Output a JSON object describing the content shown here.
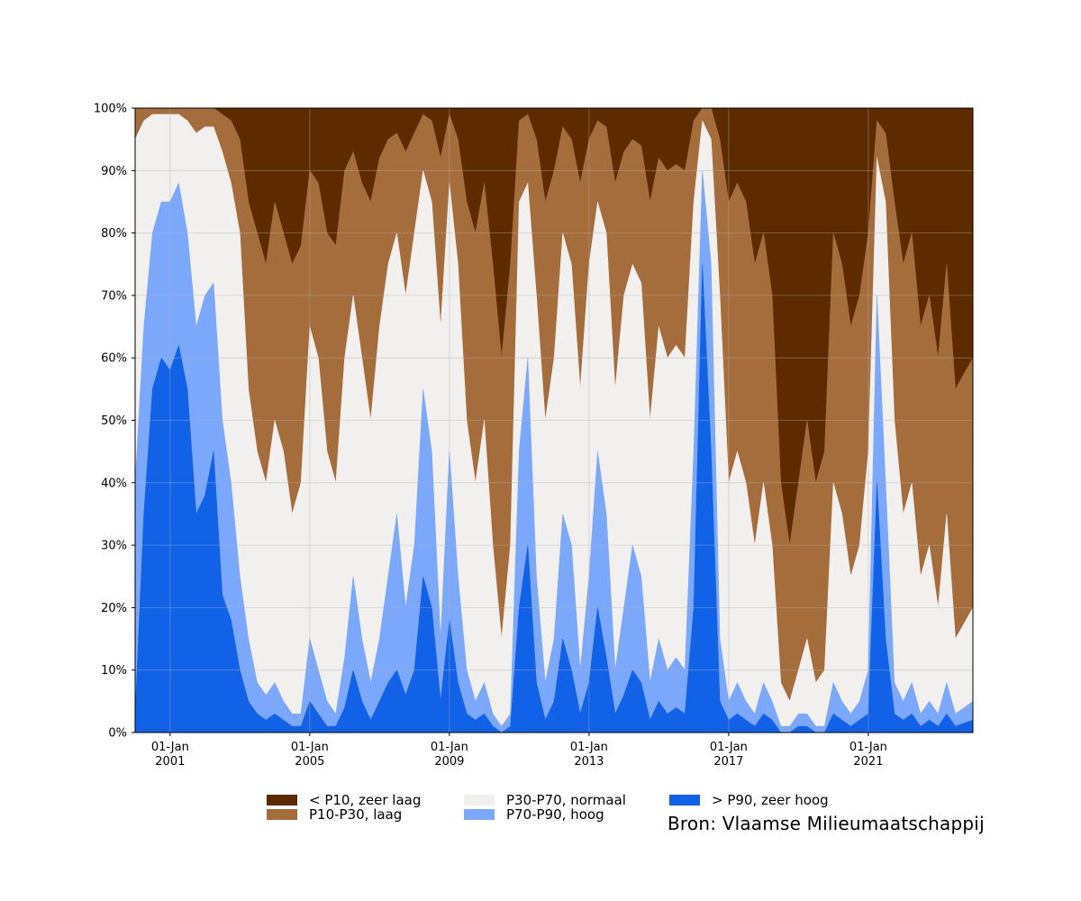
{
  "chart_data": {
    "type": "area",
    "stacked": true,
    "normalized": true,
    "title": "",
    "xlabel": "",
    "ylabel": "",
    "ylim": [
      0,
      100
    ],
    "xlim": [
      "2000-01-01",
      "2023-12-31"
    ],
    "grid": true,
    "legend_position": "bottom",
    "y_ticks": [
      "0%",
      "10%",
      "20%",
      "30%",
      "40%",
      "50%",
      "60%",
      "70%",
      "80%",
      "90%",
      "100%"
    ],
    "x_ticks": [
      {
        "date": "2001-01-01",
        "line1": "01-Jan",
        "line2": "2001"
      },
      {
        "date": "2005-01-01",
        "line1": "01-Jan",
        "line2": "2005"
      },
      {
        "date": "2009-01-01",
        "line1": "01-Jan",
        "line2": "2009"
      },
      {
        "date": "2013-01-01",
        "line1": "01-Jan",
        "line2": "2013"
      },
      {
        "date": "2017-01-01",
        "line1": "01-Jan",
        "line2": "2017"
      },
      {
        "date": "2021-01-01",
        "line1": "01-Jan",
        "line2": "2021"
      }
    ],
    "series_order_bottom_to_top": [
      "> P90, zeer hoog",
      "P70-P90, hoog",
      "P30-P70, normaal",
      "P10-P30, laag",
      "< P10, zeer laag"
    ],
    "series": [
      {
        "name": "< P10, zeer laag",
        "color": "#5e2a00"
      },
      {
        "name": "P10-P30, laag",
        "color": "#a56d3c"
      },
      {
        "name": "P30-P70, normaal",
        "color": "#f2f0ee"
      },
      {
        "name": "P70-P90, hoog",
        "color": "#7ba8fa"
      },
      {
        "name": "> P90, zeer hoog",
        "color": "#1262e8"
      }
    ],
    "x": [
      "2000-01",
      "2000-04",
      "2000-07",
      "2000-10",
      "2001-01",
      "2001-04",
      "2001-07",
      "2001-10",
      "2002-01",
      "2002-04",
      "2002-07",
      "2002-10",
      "2003-01",
      "2003-04",
      "2003-07",
      "2003-10",
      "2004-01",
      "2004-04",
      "2004-07",
      "2004-10",
      "2005-01",
      "2005-04",
      "2005-07",
      "2005-10",
      "2006-01",
      "2006-04",
      "2006-07",
      "2006-10",
      "2007-01",
      "2007-04",
      "2007-07",
      "2007-10",
      "2008-01",
      "2008-04",
      "2008-07",
      "2008-10",
      "2009-01",
      "2009-04",
      "2009-07",
      "2009-10",
      "2010-01",
      "2010-04",
      "2010-07",
      "2010-10",
      "2011-01",
      "2011-04",
      "2011-07",
      "2011-10",
      "2012-01",
      "2012-04",
      "2012-07",
      "2012-10",
      "2013-01",
      "2013-04",
      "2013-07",
      "2013-10",
      "2014-01",
      "2014-04",
      "2014-07",
      "2014-10",
      "2015-01",
      "2015-04",
      "2015-07",
      "2015-10",
      "2016-01",
      "2016-04",
      "2016-07",
      "2016-10",
      "2017-01",
      "2017-04",
      "2017-07",
      "2017-10",
      "2018-01",
      "2018-04",
      "2018-07",
      "2018-10",
      "2019-01",
      "2019-04",
      "2019-07",
      "2019-10",
      "2020-01",
      "2020-04",
      "2020-07",
      "2020-10",
      "2021-01",
      "2021-04",
      "2021-07",
      "2021-10",
      "2022-01",
      "2022-04",
      "2022-07",
      "2022-10",
      "2023-01",
      "2023-04",
      "2023-07",
      "2023-10"
    ],
    "cumulative_boundaries_percent": {
      "above_P90": [
        3,
        35,
        55,
        60,
        58,
        62,
        55,
        35,
        38,
        45,
        22,
        18,
        10,
        5,
        3,
        2,
        3,
        2,
        1,
        1,
        5,
        3,
        1,
        1,
        4,
        10,
        5,
        2,
        5,
        8,
        10,
        6,
        10,
        25,
        20,
        5,
        18,
        8,
        3,
        2,
        3,
        1,
        0,
        1,
        20,
        30,
        8,
        2,
        5,
        15,
        10,
        3,
        8,
        20,
        12,
        3,
        6,
        10,
        8,
        2,
        5,
        3,
        4,
        3,
        20,
        75,
        45,
        5,
        2,
        3,
        2,
        1,
        3,
        2,
        0,
        0,
        1,
        1,
        0,
        0,
        3,
        2,
        1,
        2,
        3,
        40,
        15,
        3,
        2,
        3,
        1,
        2,
        1,
        3,
        1,
        2
      ],
      "above_P70": [
        40,
        65,
        80,
        85,
        85,
        88,
        80,
        65,
        70,
        72,
        50,
        40,
        25,
        15,
        8,
        6,
        8,
        5,
        3,
        3,
        15,
        10,
        5,
        3,
        12,
        25,
        15,
        8,
        15,
        25,
        35,
        20,
        30,
        55,
        45,
        15,
        45,
        25,
        10,
        5,
        8,
        3,
        1,
        3,
        45,
        60,
        25,
        8,
        15,
        35,
        30,
        10,
        25,
        45,
        35,
        10,
        20,
        30,
        25,
        8,
        15,
        10,
        12,
        10,
        45,
        90,
        75,
        15,
        5,
        8,
        5,
        3,
        8,
        5,
        1,
        1,
        3,
        3,
        1,
        1,
        8,
        5,
        3,
        5,
        10,
        70,
        40,
        8,
        5,
        8,
        3,
        5,
        3,
        8,
        3,
        5
      ],
      "above_P30": [
        95,
        98,
        99,
        99,
        99,
        99,
        98,
        96,
        97,
        97,
        93,
        88,
        80,
        55,
        45,
        40,
        50,
        45,
        35,
        40,
        65,
        60,
        45,
        40,
        60,
        70,
        60,
        50,
        65,
        75,
        80,
        70,
        80,
        90,
        85,
        65,
        88,
        75,
        50,
        40,
        50,
        30,
        15,
        30,
        85,
        88,
        70,
        50,
        60,
        80,
        75,
        55,
        75,
        85,
        80,
        55,
        70,
        75,
        72,
        50,
        65,
        60,
        62,
        60,
        85,
        98,
        95,
        70,
        40,
        45,
        40,
        30,
        40,
        30,
        8,
        5,
        10,
        15,
        8,
        10,
        40,
        35,
        25,
        30,
        45,
        92,
        85,
        50,
        35,
        40,
        25,
        30,
        20,
        35,
        15,
        20
      ],
      "above_P10": [
        100,
        100,
        100,
        100,
        100,
        100,
        100,
        100,
        100,
        100,
        99,
        98,
        95,
        85,
        80,
        75,
        85,
        80,
        75,
        78,
        90,
        88,
        80,
        78,
        90,
        93,
        88,
        85,
        92,
        95,
        96,
        93,
        96,
        99,
        98,
        92,
        99,
        95,
        85,
        80,
        88,
        75,
        60,
        75,
        98,
        99,
        95,
        85,
        90,
        97,
        95,
        88,
        95,
        98,
        97,
        88,
        93,
        95,
        94,
        85,
        92,
        90,
        91,
        90,
        98,
        100,
        100,
        95,
        85,
        88,
        85,
        75,
        80,
        70,
        40,
        30,
        40,
        50,
        40,
        45,
        80,
        75,
        65,
        70,
        80,
        98,
        96,
        85,
        75,
        80,
        65,
        70,
        60,
        75,
        55,
        60
      ]
    }
  },
  "legend": {
    "items": [
      {
        "label": "< P10, zeer laag",
        "color": "#5e2a00"
      },
      {
        "label": "P10-P30, laag",
        "color": "#a56d3c"
      },
      {
        "label": "P30-P70, normaal",
        "color": "#f2f0ee"
      },
      {
        "label": "P70-P90, hoog",
        "color": "#7ba8fa"
      },
      {
        "label": "> P90, zeer hoog",
        "color": "#1262e8"
      }
    ]
  },
  "source_text": "Bron: Vlaamse Milieumaatschappij"
}
